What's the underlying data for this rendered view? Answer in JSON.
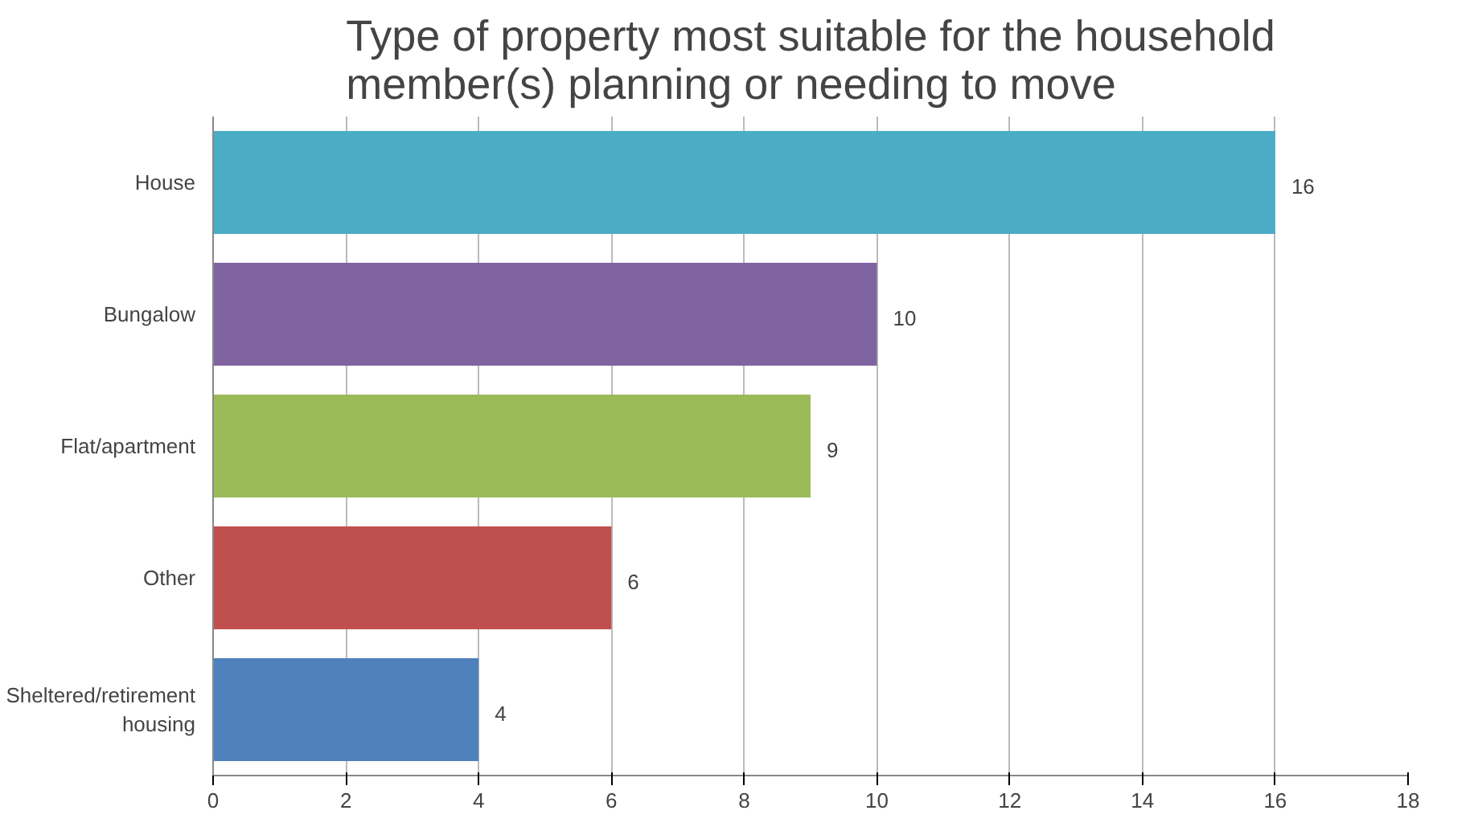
{
  "chart_data": {
    "type": "bar",
    "orientation": "horizontal",
    "title": "Type of property most suitable for the household member(s) planning or needing to move",
    "categories": [
      "House",
      "Bungalow",
      "Flat/apartment",
      "Other",
      "Sheltered/retirement housing"
    ],
    "values": [
      16,
      10,
      9,
      6,
      4
    ],
    "colors": [
      "#4bacc6",
      "#8064a2",
      "#9bbb59",
      "#c0504d",
      "#4f81bd"
    ],
    "xlim": [
      0,
      18
    ],
    "xticks": [
      0,
      2,
      4,
      6,
      8,
      10,
      12,
      14,
      16,
      18
    ],
    "grid": "x",
    "data_labels": true
  }
}
